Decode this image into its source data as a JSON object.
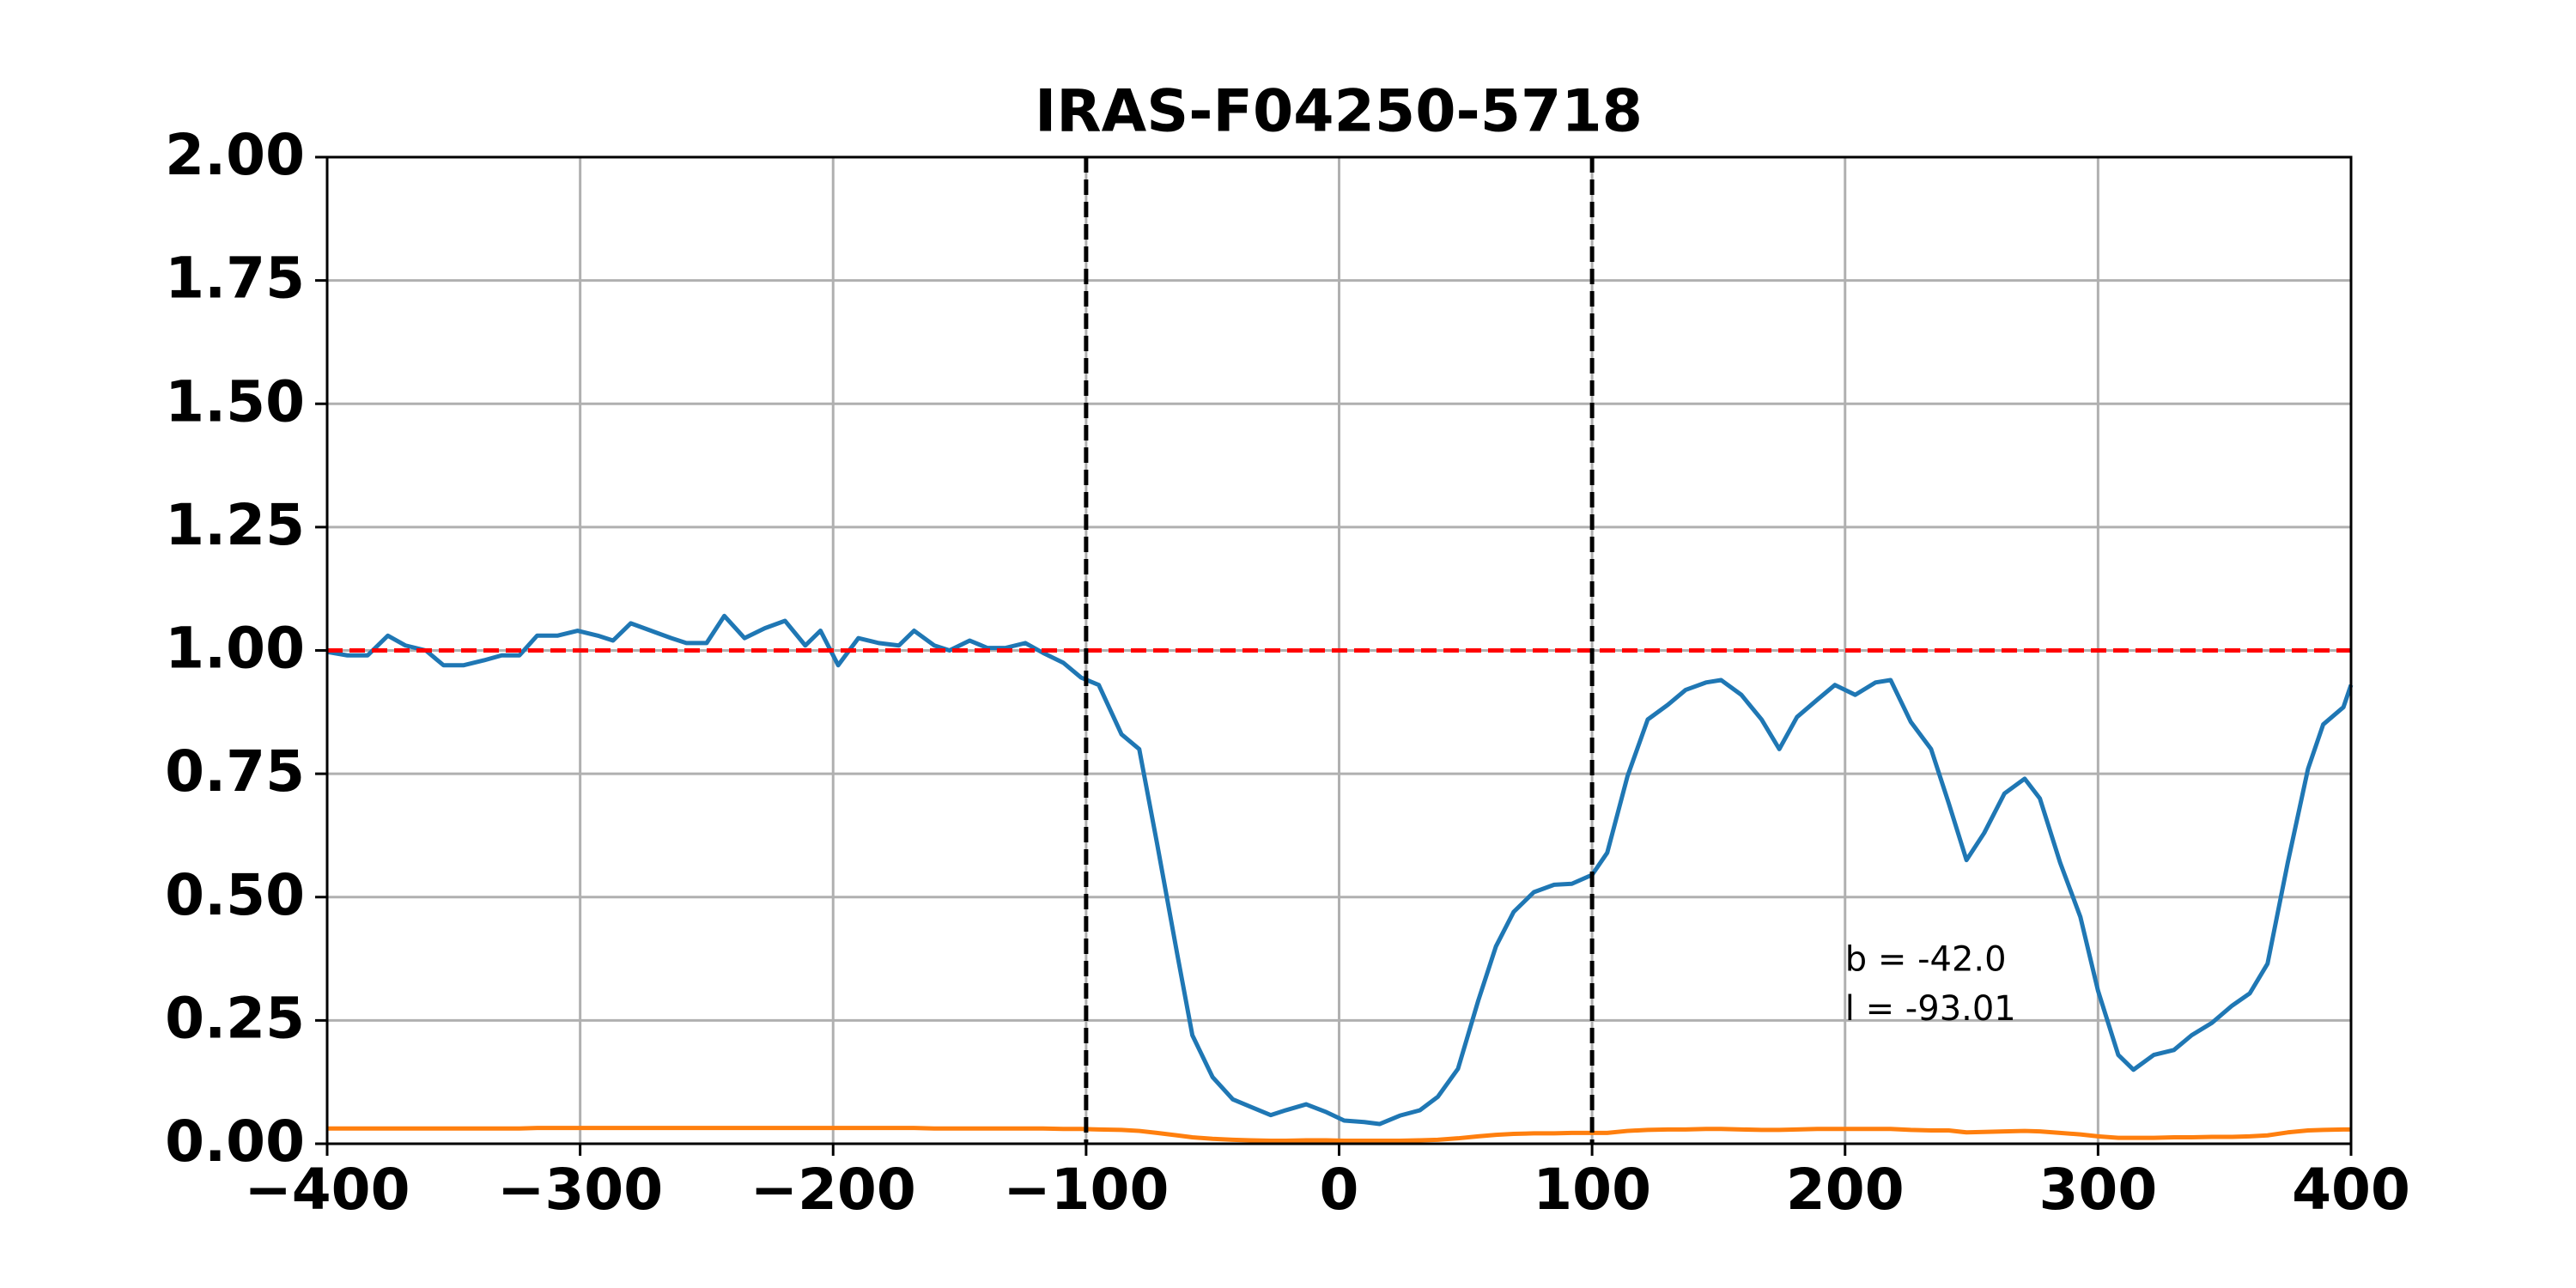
{
  "chart_data": {
    "type": "line",
    "title": "IRAS-F04250-5718",
    "x": [
      -400,
      -392,
      -384,
      -376,
      -369,
      -361,
      -354,
      -346,
      -338,
      -331,
      -324,
      -317,
      -309,
      -301,
      -293,
      -287,
      -280,
      -272,
      -264,
      -258,
      -250,
      -243,
      -235,
      -227,
      -219,
      -211,
      -205,
      -198,
      -190,
      -182,
      -174,
      -168,
      -160,
      -154,
      -146,
      -139,
      -132,
      -124,
      -117,
      -109,
      -102,
      -95,
      -86,
      -79,
      -72,
      -64,
      -58,
      -50,
      -42,
      -35,
      -27,
      -21,
      -13,
      -5,
      2,
      10,
      16,
      24,
      32,
      39,
      47,
      55,
      62,
      69,
      77,
      85,
      92,
      100,
      106,
      114,
      122,
      130,
      137,
      145,
      151,
      159,
      167,
      174,
      181,
      189,
      196,
      204,
      212,
      218,
      226,
      234,
      241,
      248,
      255,
      263,
      271,
      277,
      285,
      293,
      300,
      308,
      314,
      322,
      330,
      337,
      345,
      353,
      360,
      367,
      375,
      383,
      389,
      397,
      400
    ],
    "series": [
      {
        "color": "#1f77b4",
        "values": [
          0.997,
          0.99,
          0.99,
          1.03,
          1.01,
          1.0,
          0.97,
          0.97,
          0.98,
          0.99,
          0.99,
          1.03,
          1.03,
          1.04,
          1.03,
          1.02,
          1.055,
          1.04,
          1.025,
          1.015,
          1.015,
          1.07,
          1.025,
          1.045,
          1.06,
          1.01,
          1.04,
          0.97,
          1.025,
          1.015,
          1.01,
          1.04,
          1.01,
          1.0,
          1.02,
          1.005,
          1.005,
          1.015,
          0.995,
          0.975,
          0.945,
          0.93,
          0.83,
          0.8,
          0.61,
          0.385,
          0.22,
          0.135,
          0.09,
          0.075,
          0.058,
          0.068,
          0.08,
          0.064,
          0.047,
          0.044,
          0.04,
          0.057,
          0.068,
          0.095,
          0.152,
          0.29,
          0.4,
          0.47,
          0.51,
          0.525,
          0.527,
          0.545,
          0.59,
          0.745,
          0.86,
          0.89,
          0.92,
          0.935,
          0.94,
          0.91,
          0.86,
          0.8,
          0.865,
          0.9,
          0.93,
          0.91,
          0.935,
          0.94,
          0.855,
          0.8,
          0.69,
          0.575,
          0.63,
          0.71,
          0.74,
          0.7,
          0.57,
          0.46,
          0.31,
          0.18,
          0.15,
          0.18,
          0.19,
          0.22,
          0.245,
          0.28,
          0.305,
          0.365,
          0.57,
          0.76,
          0.85,
          0.885,
          0.93
        ]
      },
      {
        "color": "#ff7f0e",
        "values": [
          0.031,
          0.031,
          0.031,
          0.031,
          0.031,
          0.031,
          0.031,
          0.031,
          0.031,
          0.031,
          0.031,
          0.032,
          0.032,
          0.032,
          0.032,
          0.032,
          0.032,
          0.032,
          0.032,
          0.032,
          0.032,
          0.032,
          0.032,
          0.032,
          0.032,
          0.032,
          0.032,
          0.032,
          0.032,
          0.032,
          0.032,
          0.032,
          0.031,
          0.031,
          0.031,
          0.031,
          0.031,
          0.031,
          0.031,
          0.03,
          0.03,
          0.029,
          0.028,
          0.026,
          0.022,
          0.017,
          0.013,
          0.01,
          0.008,
          0.007,
          0.006,
          0.006,
          0.007,
          0.007,
          0.006,
          0.006,
          0.006,
          0.006,
          0.007,
          0.008,
          0.011,
          0.015,
          0.018,
          0.02,
          0.021,
          0.021,
          0.022,
          0.022,
          0.022,
          0.026,
          0.028,
          0.029,
          0.029,
          0.03,
          0.03,
          0.029,
          0.028,
          0.028,
          0.029,
          0.03,
          0.03,
          0.03,
          0.03,
          0.03,
          0.028,
          0.027,
          0.027,
          0.023,
          0.024,
          0.025,
          0.026,
          0.025,
          0.022,
          0.019,
          0.015,
          0.012,
          0.012,
          0.012,
          0.013,
          0.013,
          0.014,
          0.014,
          0.015,
          0.017,
          0.023,
          0.027,
          0.028,
          0.029,
          0.029
        ]
      }
    ],
    "hlines": [
      {
        "value": 1,
        "color": "#ff0000"
      }
    ],
    "vlines": [
      {
        "value": -100,
        "color": "#000000"
      },
      {
        "value": 100,
        "color": "#000000"
      }
    ],
    "annotations": [
      "b = -42.0",
      "l = -93.01"
    ],
    "xlim": [
      -400,
      400
    ],
    "xticks": [
      {
        "value": -400,
        "label": "−400"
      },
      {
        "value": -300,
        "label": "−300"
      },
      {
        "value": -200,
        "label": "−200"
      },
      {
        "value": -100,
        "label": "−100"
      },
      0,
      100,
      200,
      300,
      400
    ],
    "ylim": [
      0,
      2
    ],
    "yticks": [
      {
        "value": 0,
        "label": "0.00"
      },
      {
        "value": 0.25,
        "label": "0.25"
      },
      {
        "value": 0.5,
        "label": "0.50"
      },
      {
        "value": 0.75,
        "label": "0.75"
      },
      {
        "value": 1,
        "label": "1.00"
      },
      {
        "value": 1.25,
        "label": "1.25"
      },
      {
        "value": 1.5,
        "label": "1.50"
      },
      {
        "value": 1.75,
        "label": "1.75"
      },
      {
        "value": 2,
        "label": "2.00"
      }
    ],
    "grid": true
  }
}
